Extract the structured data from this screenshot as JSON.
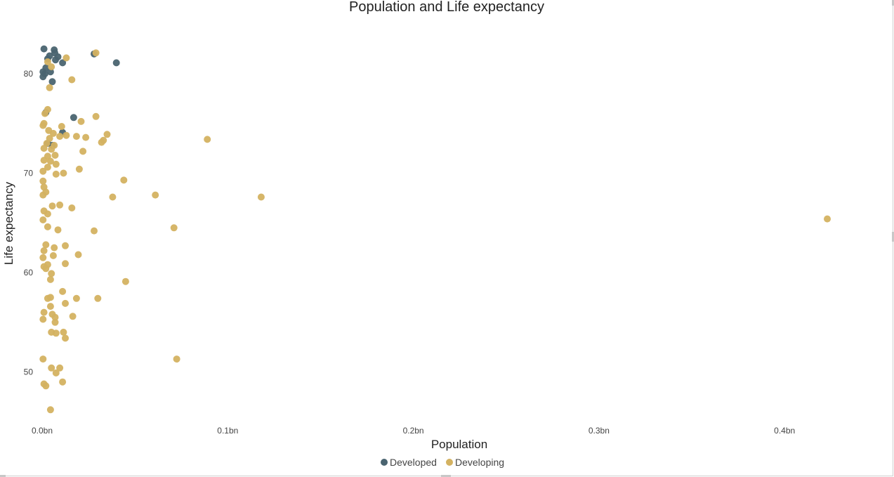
{
  "chart_data": {
    "type": "scatter",
    "title": "Population and Life expectancy",
    "xlabel": "Population",
    "ylabel": "Life expectancy",
    "xlim": [
      0,
      0.46
    ],
    "ylim": [
      45,
      84
    ],
    "x_ticks": [
      {
        "value": 0.0,
        "label": "0.0bn"
      },
      {
        "value": 0.1,
        "label": "0.1bn"
      },
      {
        "value": 0.2,
        "label": "0.2bn"
      },
      {
        "value": 0.3,
        "label": "0.3bn"
      },
      {
        "value": 0.4,
        "label": "0.4bn"
      }
    ],
    "y_ticks": [
      {
        "value": 50,
        "label": "50"
      },
      {
        "value": 60,
        "label": "60"
      },
      {
        "value": 70,
        "label": "70"
      },
      {
        "value": 80,
        "label": "80"
      }
    ],
    "grid": false,
    "legend_position": "bottom-center",
    "series": [
      {
        "name": "Developed",
        "color": "#4a6470",
        "points": [
          [
            0.001,
            82.5
          ],
          [
            0.004,
            81.8
          ],
          [
            0.0065,
            82.4
          ],
          [
            0.0068,
            82.1
          ],
          [
            0.0085,
            81.7
          ],
          [
            0.003,
            81.5
          ],
          [
            0.0072,
            81.4
          ],
          [
            0.011,
            81.1
          ],
          [
            0.002,
            80.6
          ],
          [
            0.0005,
            80.2
          ],
          [
            0.0015,
            80.0
          ],
          [
            0.0045,
            80.2
          ],
          [
            0.0055,
            79.2
          ],
          [
            0.0005,
            79.7
          ],
          [
            0.028,
            82.0
          ],
          [
            0.04,
            81.1
          ],
          [
            0.017,
            75.6
          ],
          [
            0.002,
            76.1
          ],
          [
            0.011,
            74.1
          ],
          [
            0.0055,
            72.8
          ],
          [
            0.003,
            73.0
          ]
        ]
      },
      {
        "name": "Developing",
        "color": "#d4b261",
        "points": [
          [
            0.029,
            82.1
          ],
          [
            0.013,
            81.6
          ],
          [
            0.003,
            81.2
          ],
          [
            0.005,
            80.7
          ],
          [
            0.016,
            79.4
          ],
          [
            0.004,
            78.6
          ],
          [
            0.003,
            76.4
          ],
          [
            0.0015,
            76.0
          ],
          [
            0.029,
            75.7
          ],
          [
            0.021,
            75.2
          ],
          [
            0.001,
            75.0
          ],
          [
            0.0005,
            74.8
          ],
          [
            0.0105,
            74.7
          ],
          [
            0.0035,
            74.3
          ],
          [
            0.006,
            74.0
          ],
          [
            0.035,
            73.9
          ],
          [
            0.013,
            73.8
          ],
          [
            0.0185,
            73.7
          ],
          [
            0.0235,
            73.6
          ],
          [
            0.004,
            73.5
          ],
          [
            0.0095,
            73.7
          ],
          [
            0.033,
            73.3
          ],
          [
            0.032,
            73.1
          ],
          [
            0.089,
            73.4
          ],
          [
            0.0025,
            73.0
          ],
          [
            0.0065,
            72.8
          ],
          [
            0.001,
            72.5
          ],
          [
            0.005,
            72.4
          ],
          [
            0.022,
            72.2
          ],
          [
            0.007,
            71.8
          ],
          [
            0.003,
            71.7
          ],
          [
            0.0045,
            71.2
          ],
          [
            0.001,
            71.3
          ],
          [
            0.0075,
            70.9
          ],
          [
            0.003,
            70.6
          ],
          [
            0.02,
            70.4
          ],
          [
            0.0005,
            70.2
          ],
          [
            0.0115,
            70.0
          ],
          [
            0.0075,
            69.9
          ],
          [
            0.044,
            69.3
          ],
          [
            0.0005,
            69.2
          ],
          [
            0.001,
            68.6
          ],
          [
            0.002,
            68.1
          ],
          [
            0.0005,
            67.8
          ],
          [
            0.061,
            67.8
          ],
          [
            0.038,
            67.6
          ],
          [
            0.118,
            67.6
          ],
          [
            0.0095,
            66.8
          ],
          [
            0.0055,
            66.7
          ],
          [
            0.016,
            66.5
          ],
          [
            0.001,
            66.2
          ],
          [
            0.003,
            65.9
          ],
          [
            0.423,
            65.4
          ],
          [
            0.0005,
            65.3
          ],
          [
            0.003,
            64.6
          ],
          [
            0.071,
            64.5
          ],
          [
            0.0085,
            64.3
          ],
          [
            0.028,
            64.2
          ],
          [
            0.002,
            62.8
          ],
          [
            0.0125,
            62.7
          ],
          [
            0.0065,
            62.5
          ],
          [
            0.001,
            62.2
          ],
          [
            0.0195,
            61.8
          ],
          [
            0.006,
            61.7
          ],
          [
            0.0005,
            61.5
          ],
          [
            0.0125,
            60.9
          ],
          [
            0.003,
            60.8
          ],
          [
            0.001,
            60.6
          ],
          [
            0.002,
            60.4
          ],
          [
            0.005,
            59.9
          ],
          [
            0.0045,
            59.3
          ],
          [
            0.045,
            59.1
          ],
          [
            0.011,
            58.1
          ],
          [
            0.0045,
            57.5
          ],
          [
            0.003,
            57.4
          ],
          [
            0.0185,
            57.4
          ],
          [
            0.03,
            57.4
          ],
          [
            0.0125,
            56.9
          ],
          [
            0.0045,
            56.6
          ],
          [
            0.001,
            56.0
          ],
          [
            0.0055,
            55.8
          ],
          [
            0.007,
            55.5
          ],
          [
            0.0005,
            55.3
          ],
          [
            0.0165,
            55.6
          ],
          [
            0.007,
            55.0
          ],
          [
            0.005,
            54.0
          ],
          [
            0.0075,
            53.9
          ],
          [
            0.0115,
            54.0
          ],
          [
            0.0125,
            53.4
          ],
          [
            0.0725,
            51.3
          ],
          [
            0.0005,
            51.3
          ],
          [
            0.005,
            50.4
          ],
          [
            0.0095,
            50.4
          ],
          [
            0.0075,
            49.9
          ],
          [
            0.011,
            49.0
          ],
          [
            0.001,
            48.8
          ],
          [
            0.002,
            48.6
          ],
          [
            0.0045,
            46.2
          ]
        ]
      }
    ]
  }
}
